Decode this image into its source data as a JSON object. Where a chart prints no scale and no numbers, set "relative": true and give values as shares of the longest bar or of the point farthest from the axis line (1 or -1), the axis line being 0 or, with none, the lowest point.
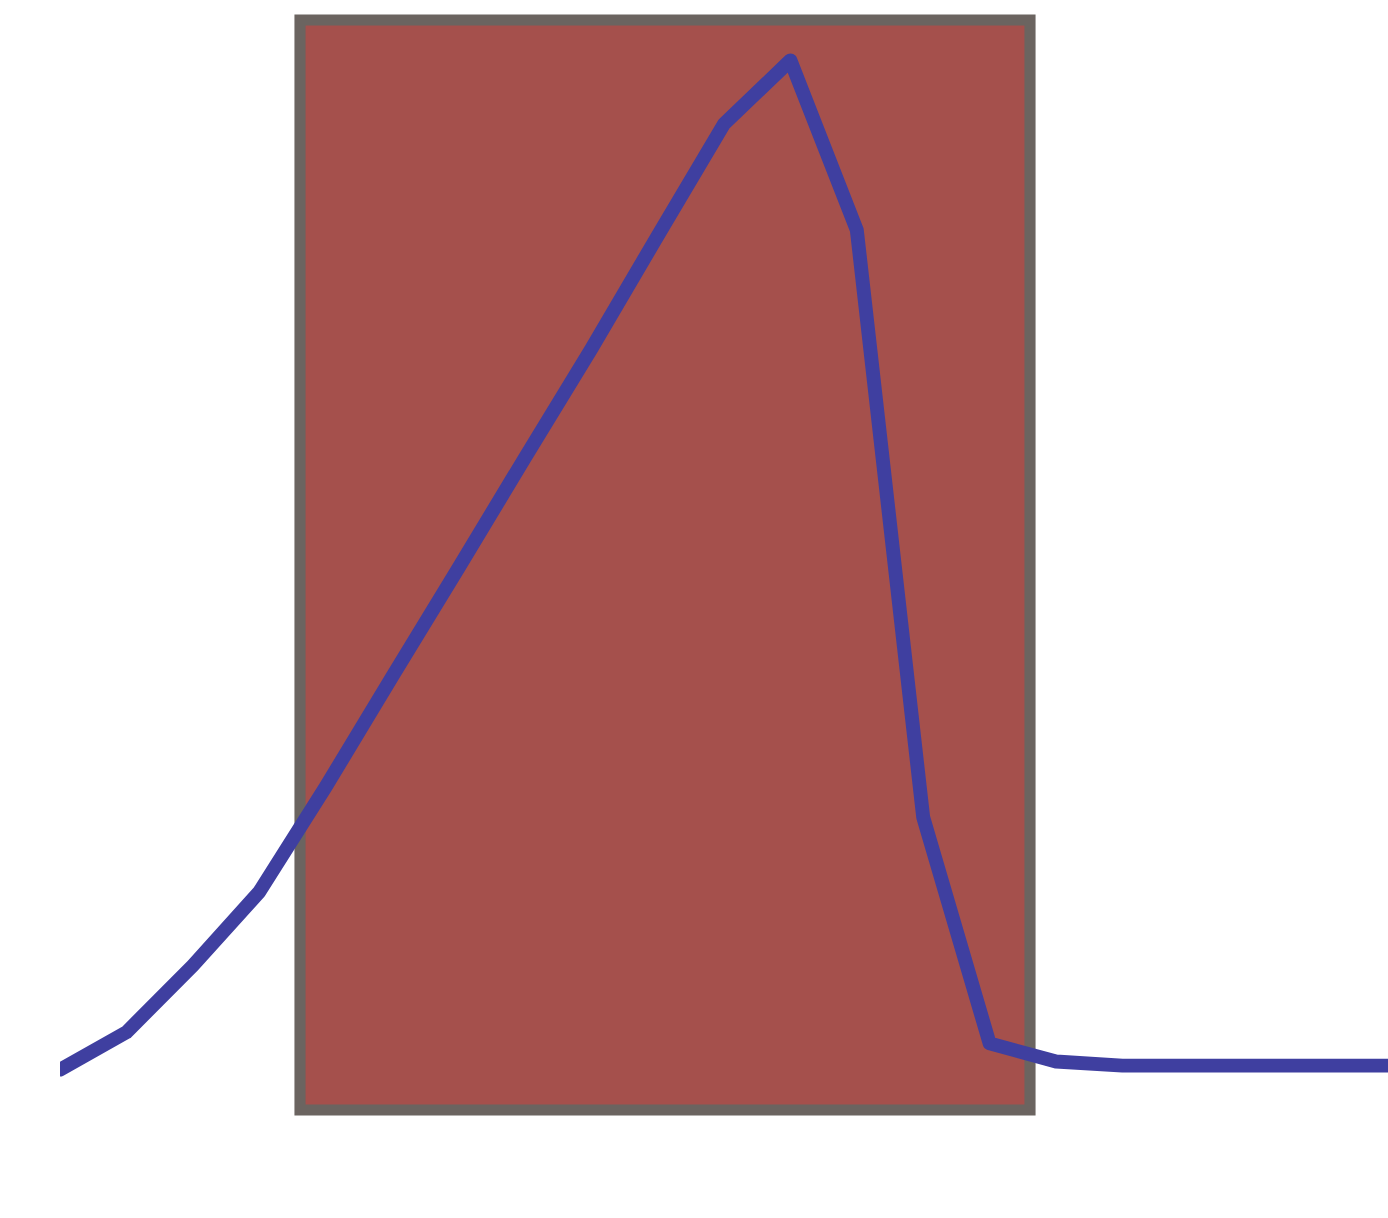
{
  "chart_data": {
    "type": "line",
    "relative": true,
    "categories": [
      null,
      null,
      null,
      null,
      null,
      null,
      null,
      null,
      null,
      null,
      null,
      null,
      null,
      null,
      null,
      null,
      null,
      null,
      null,
      null,
      null
    ],
    "series": [
      {
        "color": "#3f3fa0",
        "values": [
          0,
          0.037,
          0.103,
          0.176,
          0.28,
          0.389,
          0.497,
          0.606,
          0.714,
          0.826,
          0.937,
          1,
          0.832,
          0.25,
          0.026,
          0.008,
          0.004,
          0.004,
          0.004,
          0.004,
          0.004
        ]
      }
    ],
    "line_style": "solid",
    "marker": "none",
    "legend": false
  }
}
